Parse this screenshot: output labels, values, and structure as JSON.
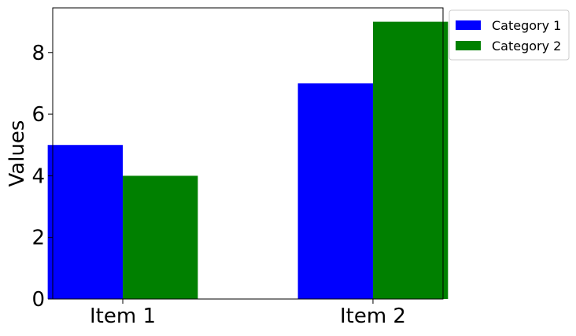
{
  "chart_data": {
    "type": "bar",
    "title": "",
    "xlabel": "",
    "ylabel": "Values",
    "categories": [
      "Item 1",
      "Item 2"
    ],
    "series": [
      {
        "name": "Category 1",
        "color": "#0000ff",
        "values": [
          5,
          7
        ]
      },
      {
        "name": "Category 2",
        "color": "#008000",
        "values": [
          4,
          9
        ]
      }
    ],
    "ylim": [
      0,
      9.45
    ],
    "yticks": [
      0,
      2,
      4,
      6,
      8
    ],
    "grid": false,
    "legend_position": "outside-top-right"
  }
}
